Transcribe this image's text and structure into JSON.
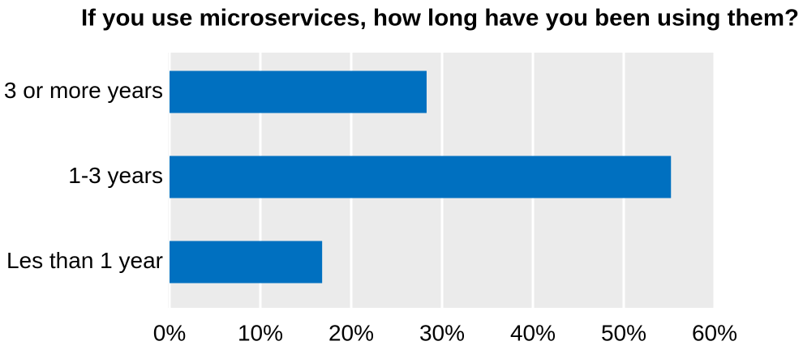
{
  "chart_data": {
    "type": "hbar",
    "title": "If you use microservices, how long have you been using them?",
    "categories": [
      "3 or more years",
      "1-3 years",
      "Les than 1 year"
    ],
    "values": [
      28.3,
      55.2,
      16.8
    ],
    "color": "#0070c0",
    "xlim": [
      0,
      60
    ],
    "xticks": [
      {
        "value": 0,
        "label": "0%"
      },
      {
        "value": 10,
        "label": "10%"
      },
      {
        "value": 20,
        "label": "20%"
      },
      {
        "value": 30,
        "label": "30%"
      },
      {
        "value": 40,
        "label": "40%"
      },
      {
        "value": 50,
        "label": "50%"
      },
      {
        "value": 60,
        "label": "60%"
      }
    ],
    "grid": true
  }
}
